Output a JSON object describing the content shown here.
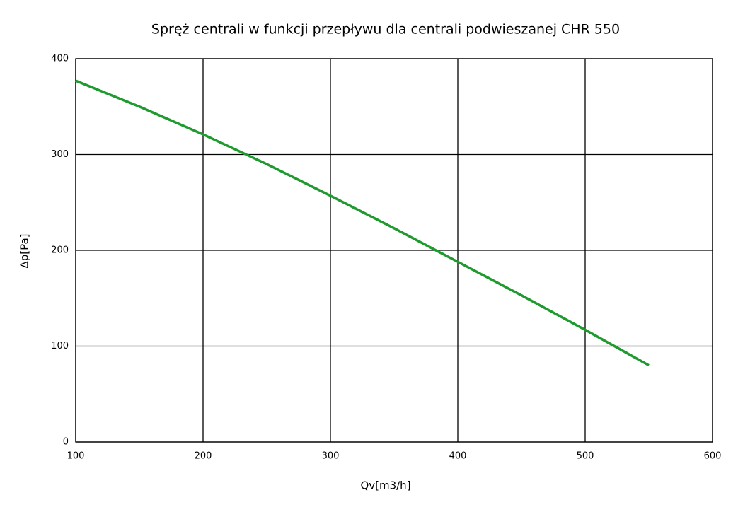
{
  "chart_data": {
    "type": "line",
    "title": "Spręż centrali w funkcji przepływu dla centrali podwieszanej CHR 550",
    "x_label": "Qv[m3/h]",
    "y_label": "Δp[Pa]",
    "x": [
      100,
      150,
      200,
      250,
      300,
      350,
      400,
      450,
      500,
      550
    ],
    "series": [
      {
        "color": "#1f9a2e",
        "values": [
          377,
          350,
          321,
          290,
          257,
          223,
          188,
          153,
          117,
          80
        ]
      }
    ],
    "xlim": [
      100,
      600
    ],
    "xticks": [
      100,
      200,
      300,
      400,
      500,
      600
    ],
    "ylim": [
      0,
      400
    ],
    "yticks": [
      0,
      100,
      200,
      300,
      400
    ],
    "grid": true
  }
}
